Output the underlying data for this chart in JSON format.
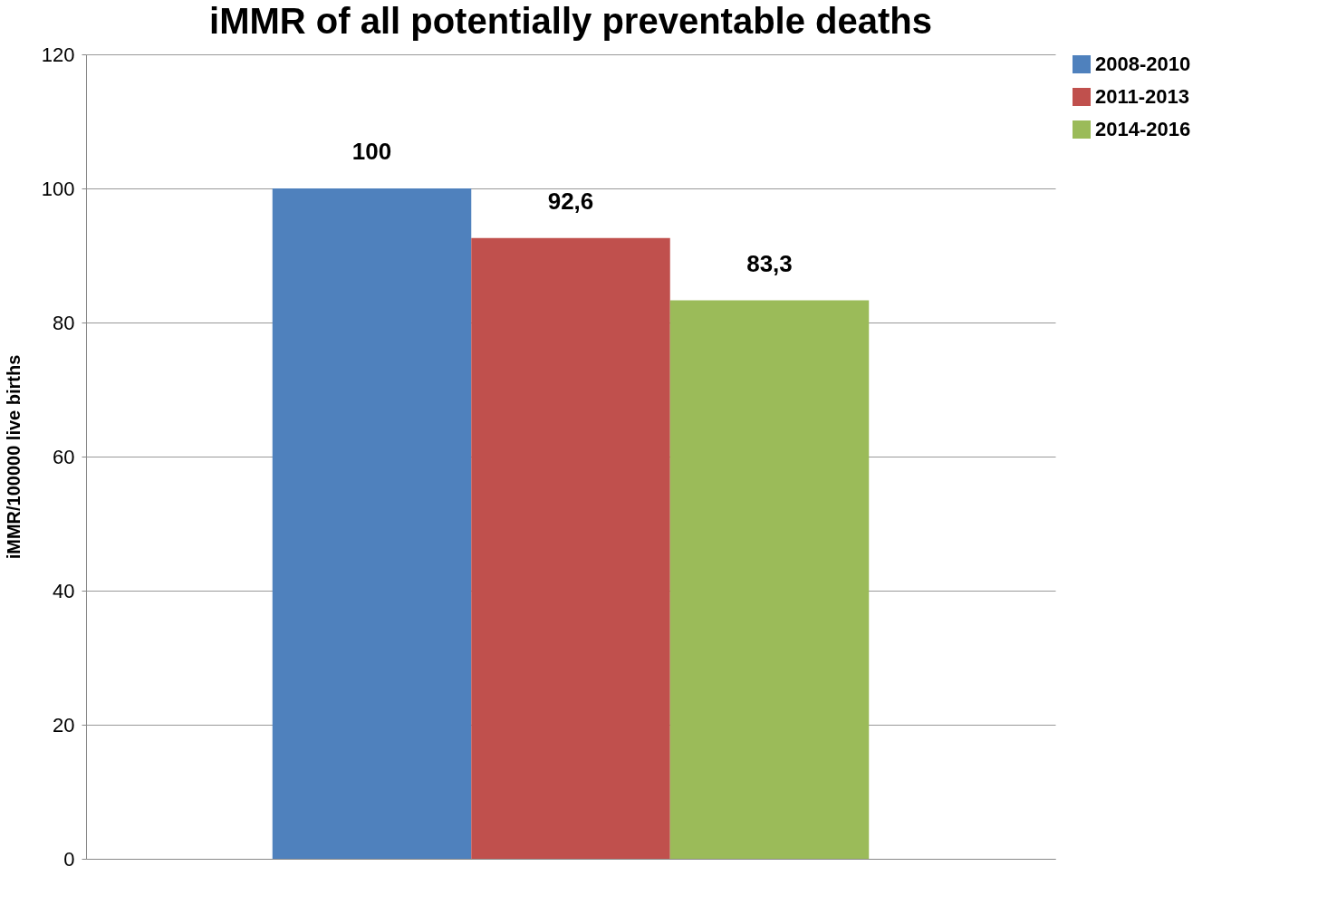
{
  "chart_data": {
    "type": "bar",
    "title": "iMMR of all potentially preventable deaths",
    "ylabel": "iMMR/100000 live births",
    "categories": [
      null
    ],
    "series": [
      {
        "name": "2008-2010",
        "color": "#4f81bd",
        "values": [
          100
        ],
        "value_labels": [
          "100"
        ]
      },
      {
        "name": "2011-2013",
        "color": "#c0504d",
        "values": [
          92.6
        ],
        "value_labels": [
          "92,6"
        ]
      },
      {
        "name": "2014-2016",
        "color": "#9bbb59",
        "values": [
          83.3
        ],
        "value_labels": [
          "83,3"
        ]
      }
    ],
    "ylim": [
      0,
      120
    ],
    "yticks": [
      0,
      20,
      40,
      60,
      80,
      100,
      120
    ],
    "grid": "y",
    "legend": "right"
  }
}
